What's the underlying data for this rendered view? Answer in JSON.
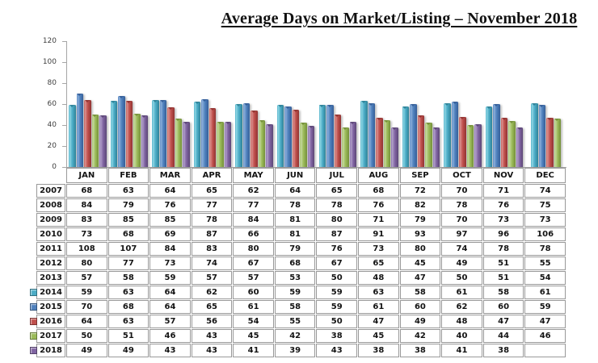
{
  "title": "Average Days on Market/Listing – November 2018",
  "chart_data": {
    "type": "bar",
    "title": "Average Days on Market/Listing – November 2018",
    "categories": [
      "JAN",
      "FEB",
      "MAR",
      "APR",
      "MAY",
      "JUN",
      "JUL",
      "AUG",
      "SEP",
      "OCT",
      "NOV",
      "DEC"
    ],
    "ylim": [
      0,
      120
    ],
    "yticks": [
      0,
      20,
      40,
      60,
      80,
      100,
      120
    ],
    "grid": false,
    "legend_position": "table-row-headers",
    "series": [
      {
        "name": "2014",
        "color": "#4BACC6",
        "color_light": "#8FD6E4",
        "color_dark": "#31859B",
        "values": [
          59,
          63,
          64,
          62,
          60,
          59,
          59,
          63,
          58,
          61,
          58,
          61
        ]
      },
      {
        "name": "2015",
        "color": "#4F81BD",
        "color_light": "#8CAFDB",
        "color_dark": "#38619B",
        "values": [
          70,
          68,
          64,
          65,
          61,
          58,
          59,
          61,
          60,
          62,
          60,
          59
        ]
      },
      {
        "name": "2016",
        "color": "#C0504D",
        "color_light": "#DA918F",
        "color_dark": "#943634",
        "values": [
          64,
          63,
          57,
          56,
          54,
          55,
          50,
          47,
          49,
          48,
          47,
          47
        ]
      },
      {
        "name": "2017",
        "color": "#9BBB59",
        "color_light": "#C6D8A0",
        "color_dark": "#77933C",
        "values": [
          50,
          51,
          46,
          43,
          45,
          42,
          38,
          45,
          42,
          40,
          44,
          46
        ]
      },
      {
        "name": "2018",
        "color": "#8064A2",
        "color_light": "#B3A2CA",
        "color_dark": "#5F497A",
        "values": [
          49,
          49,
          43,
          43,
          41,
          39,
          43,
          38,
          38,
          41,
          38,
          null
        ]
      }
    ]
  },
  "table": {
    "month_columns": [
      "JAN",
      "FEB",
      "MAR",
      "APR",
      "MAY",
      "JUN",
      "JUL",
      "AUG",
      "SEP",
      "OCT",
      "NOV",
      "DEC"
    ],
    "rows": [
      {
        "year": "2007",
        "values": [
          68,
          63,
          64,
          65,
          62,
          64,
          65,
          68,
          72,
          70,
          71,
          74
        ]
      },
      {
        "year": "2008",
        "values": [
          84,
          79,
          76,
          77,
          77,
          78,
          78,
          76,
          82,
          78,
          76,
          75
        ]
      },
      {
        "year": "2009",
        "values": [
          83,
          85,
          85,
          78,
          84,
          81,
          80,
          71,
          79,
          70,
          73,
          73
        ]
      },
      {
        "year": "2010",
        "values": [
          73,
          68,
          69,
          87,
          66,
          81,
          87,
          91,
          93,
          97,
          96,
          106
        ]
      },
      {
        "year": "2011",
        "values": [
          108,
          107,
          84,
          83,
          80,
          79,
          76,
          73,
          80,
          74,
          78,
          78
        ]
      },
      {
        "year": "2012",
        "values": [
          80,
          77,
          73,
          74,
          67,
          68,
          67,
          65,
          45,
          49,
          51,
          55
        ]
      },
      {
        "year": "2013",
        "values": [
          57,
          58,
          59,
          57,
          57,
          53,
          50,
          48,
          47,
          50,
          51,
          54
        ]
      },
      {
        "year": "2014",
        "key_color": "#4BACC6",
        "values": [
          59,
          63,
          64,
          62,
          60,
          59,
          59,
          63,
          58,
          61,
          58,
          61
        ]
      },
      {
        "year": "2015",
        "key_color": "#4F81BD",
        "values": [
          70,
          68,
          64,
          65,
          61,
          58,
          59,
          61,
          60,
          62,
          60,
          59
        ]
      },
      {
        "year": "2016",
        "key_color": "#C0504D",
        "values": [
          64,
          63,
          57,
          56,
          54,
          55,
          50,
          47,
          49,
          48,
          47,
          47
        ]
      },
      {
        "year": "2017",
        "key_color": "#9BBB59",
        "values": [
          50,
          51,
          46,
          43,
          45,
          42,
          38,
          45,
          42,
          40,
          44,
          46
        ]
      },
      {
        "year": "2018",
        "key_color": "#8064A2",
        "values": [
          49,
          49,
          43,
          43,
          41,
          39,
          43,
          38,
          38,
          41,
          38,
          null
        ]
      }
    ]
  }
}
